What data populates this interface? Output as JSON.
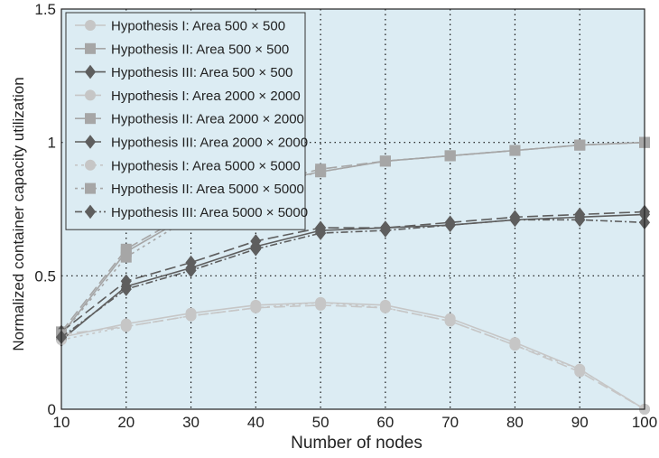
{
  "chart_data": {
    "type": "line",
    "title": "",
    "xlabel": "Number of nodes",
    "ylabel": "Normalized container capacity utilization",
    "xlim": [
      10,
      100
    ],
    "ylim": [
      0,
      1.5
    ],
    "x_ticks": [
      10,
      20,
      30,
      40,
      50,
      60,
      70,
      80,
      90,
      100
    ],
    "y_ticks": [
      0,
      0.5,
      1,
      1.5
    ],
    "y_tick_labels": [
      "0",
      "0.5",
      "1",
      "1.5"
    ],
    "grid": "dotted",
    "plot_background": "#dcecf3",
    "legend_position": "top-left",
    "x": [
      10,
      20,
      30,
      40,
      50,
      60,
      70,
      80,
      90,
      100
    ],
    "series": [
      {
        "name": "Hypothesis I: Area 500 × 500",
        "marker": "circle",
        "color": "#c6c6c6",
        "dash": "",
        "values": [
          0.27,
          0.32,
          0.36,
          0.39,
          0.4,
          0.39,
          0.34,
          0.25,
          0.15,
          0.0
        ]
      },
      {
        "name": "Hypothesis II: Area 500 × 500",
        "marker": "square",
        "color": "#a6a6a6",
        "dash": "",
        "values": [
          0.28,
          0.59,
          0.73,
          0.84,
          0.89,
          0.93,
          0.95,
          0.97,
          0.99,
          1.0
        ]
      },
      {
        "name": "Hypothesis III: Area 500 × 500",
        "marker": "diamond",
        "color": "#5e5e5e",
        "dash": "",
        "values": [
          0.26,
          0.46,
          0.53,
          0.61,
          0.67,
          0.68,
          0.69,
          0.71,
          0.72,
          0.73
        ]
      },
      {
        "name": "Hypothesis I: Area 2000 × 2000",
        "marker": "circle",
        "color": "#c6c6c6",
        "dash": "12,5",
        "values": [
          0.28,
          0.31,
          0.35,
          0.38,
          0.39,
          0.38,
          0.33,
          0.24,
          0.14,
          0.0
        ]
      },
      {
        "name": "Hypothesis II: Area 2000 × 2000",
        "marker": "square",
        "color": "#a6a6a6",
        "dash": "12,5",
        "values": [
          0.29,
          0.6,
          0.74,
          0.84,
          0.9,
          0.93,
          0.95,
          0.97,
          0.99,
          1.0
        ]
      },
      {
        "name": "Hypothesis III: Area 2000 × 2000",
        "marker": "diamond",
        "color": "#5e5e5e",
        "dash": "12,5",
        "values": [
          0.29,
          0.48,
          0.55,
          0.63,
          0.68,
          0.68,
          0.7,
          0.72,
          0.73,
          0.74
        ]
      },
      {
        "name": "Hypothesis I: Area 5000 × 5000",
        "marker": "circle",
        "color": "#c6c6c6",
        "dash": "3,4",
        "values": [
          0.26,
          0.31,
          0.35,
          0.38,
          0.4,
          0.38,
          0.33,
          0.24,
          0.15,
          0.0
        ]
      },
      {
        "name": "Hypothesis II: Area 5000 × 5000",
        "marker": "square",
        "color": "#a6a6a6",
        "dash": "3,4",
        "values": [
          0.28,
          0.57,
          0.72,
          0.83,
          0.89,
          0.93,
          0.95,
          0.97,
          0.99,
          1.0
        ]
      },
      {
        "name": "Hypothesis III: Area 5000 × 5000",
        "marker": "diamond",
        "color": "#5e5e5e",
        "dash": "8,3,2,3",
        "values": [
          0.27,
          0.45,
          0.52,
          0.6,
          0.66,
          0.67,
          0.69,
          0.71,
          0.71,
          0.7
        ]
      }
    ]
  }
}
